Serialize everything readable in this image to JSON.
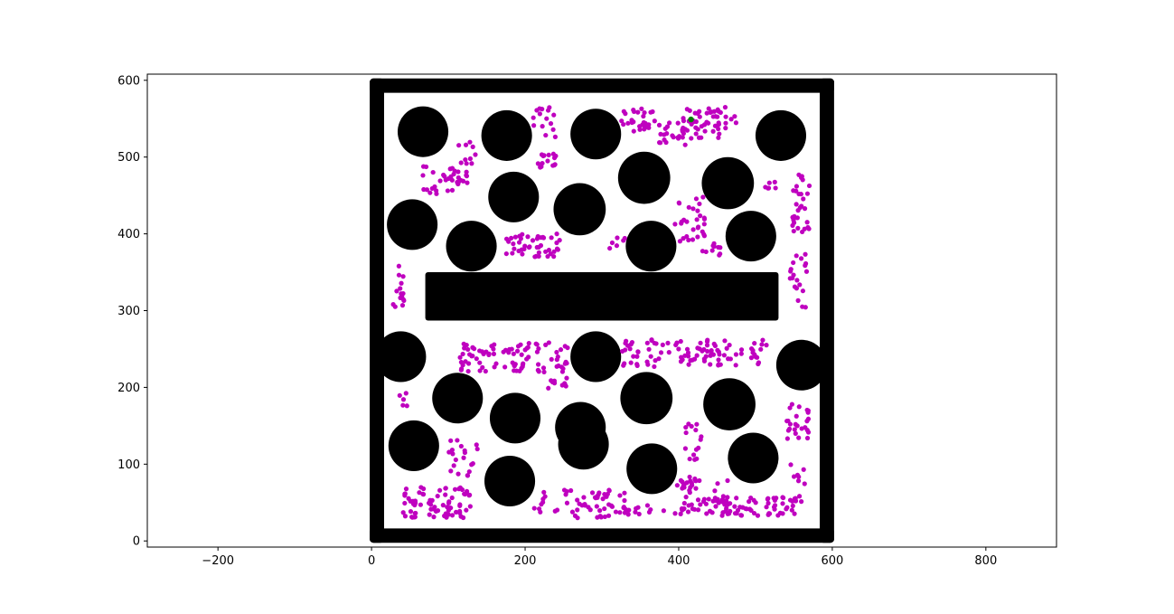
{
  "chart_data": {
    "type": "scatter",
    "title": "",
    "xlabel": "",
    "ylabel": "",
    "xlim": [
      -292,
      892
    ],
    "ylim": [
      -8,
      608
    ],
    "grid": false,
    "xticks": [
      -200,
      0,
      200,
      400,
      600,
      800
    ],
    "yticks": [
      0,
      100,
      200,
      300,
      400,
      500,
      600
    ],
    "xtick_labels": [
      "−200",
      "0",
      "200",
      "400",
      "600",
      "800"
    ],
    "ytick_labels": [
      "0",
      "100",
      "200",
      "300",
      "400",
      "500",
      "600"
    ],
    "colors": {
      "obstacle": "#000000",
      "samples": "#bf00bf",
      "goal": "#008000",
      "axes": "#000000"
    },
    "boundary": {
      "x0": 0,
      "y0": 0,
      "x1": 600,
      "y1": 600,
      "thickness": 14
    },
    "rect_obstacles": [
      {
        "x0": 70,
        "y0": 287,
        "x1": 530,
        "y1": 350
      }
    ],
    "circle_obstacles": [
      {
        "x": 67,
        "y": 533,
        "r": 33
      },
      {
        "x": 176,
        "y": 528,
        "r": 33
      },
      {
        "x": 292,
        "y": 530,
        "r": 33
      },
      {
        "x": 533,
        "y": 528,
        "r": 33
      },
      {
        "x": 355,
        "y": 473,
        "r": 34
      },
      {
        "x": 464,
        "y": 466,
        "r": 34
      },
      {
        "x": 185,
        "y": 448,
        "r": 33
      },
      {
        "x": 271,
        "y": 432,
        "r": 34
      },
      {
        "x": 53,
        "y": 412,
        "r": 33
      },
      {
        "x": 130,
        "y": 384,
        "r": 33
      },
      {
        "x": 364,
        "y": 384,
        "r": 33
      },
      {
        "x": 494,
        "y": 397,
        "r": 33
      },
      {
        "x": 38,
        "y": 240,
        "r": 33
      },
      {
        "x": 292,
        "y": 240,
        "r": 33
      },
      {
        "x": 560,
        "y": 229,
        "r": 33
      },
      {
        "x": 112,
        "y": 186,
        "r": 33
      },
      {
        "x": 358,
        "y": 186,
        "r": 34
      },
      {
        "x": 466,
        "y": 178,
        "r": 34
      },
      {
        "x": 187,
        "y": 160,
        "r": 33
      },
      {
        "x": 272,
        "y": 148,
        "r": 33
      },
      {
        "x": 276,
        "y": 126,
        "r": 33
      },
      {
        "x": 55,
        "y": 124,
        "r": 33
      },
      {
        "x": 497,
        "y": 108,
        "r": 33
      },
      {
        "x": 365,
        "y": 94,
        "r": 33
      },
      {
        "x": 180,
        "y": 78,
        "r": 33
      }
    ],
    "sample_clusters": [
      {
        "cx": 345,
        "cy": 548,
        "rx": 25,
        "ry": 15,
        "n": 30
      },
      {
        "cx": 440,
        "cy": 545,
        "rx": 35,
        "ry": 20,
        "n": 50
      },
      {
        "cx": 395,
        "cy": 530,
        "rx": 25,
        "ry": 15,
        "n": 25
      },
      {
        "cx": 225,
        "cy": 545,
        "rx": 15,
        "ry": 20,
        "n": 15
      },
      {
        "cx": 230,
        "cy": 495,
        "rx": 15,
        "ry": 10,
        "n": 15
      },
      {
        "cx": 95,
        "cy": 470,
        "rx": 30,
        "ry": 18,
        "n": 35
      },
      {
        "cx": 125,
        "cy": 505,
        "rx": 12,
        "ry": 15,
        "n": 10
      },
      {
        "cx": 560,
        "cy": 440,
        "rx": 12,
        "ry": 40,
        "n": 30
      },
      {
        "cx": 520,
        "cy": 460,
        "rx": 10,
        "ry": 10,
        "n": 6
      },
      {
        "cx": 415,
        "cy": 420,
        "rx": 20,
        "ry": 30,
        "n": 30
      },
      {
        "cx": 210,
        "cy": 385,
        "rx": 40,
        "ry": 15,
        "n": 45
      },
      {
        "cx": 320,
        "cy": 385,
        "rx": 10,
        "ry": 10,
        "n": 6
      },
      {
        "cx": 440,
        "cy": 380,
        "rx": 15,
        "ry": 8,
        "n": 10
      },
      {
        "cx": 555,
        "cy": 340,
        "rx": 12,
        "ry": 40,
        "n": 20
      },
      {
        "cx": 35,
        "cy": 330,
        "rx": 8,
        "ry": 30,
        "n": 15
      },
      {
        "cx": 190,
        "cy": 240,
        "rx": 75,
        "ry": 20,
        "n": 90
      },
      {
        "cx": 420,
        "cy": 245,
        "rx": 95,
        "ry": 18,
        "n": 100
      },
      {
        "cx": 240,
        "cy": 205,
        "rx": 15,
        "ry": 8,
        "n": 10
      },
      {
        "cx": 40,
        "cy": 185,
        "rx": 8,
        "ry": 10,
        "n": 5
      },
      {
        "cx": 555,
        "cy": 155,
        "rx": 15,
        "ry": 25,
        "n": 25
      },
      {
        "cx": 120,
        "cy": 110,
        "rx": 20,
        "ry": 25,
        "n": 20
      },
      {
        "cx": 85,
        "cy": 50,
        "rx": 45,
        "ry": 20,
        "n": 75
      },
      {
        "cx": 270,
        "cy": 50,
        "rx": 60,
        "ry": 20,
        "n": 60
      },
      {
        "cx": 430,
        "cy": 60,
        "rx": 35,
        "ry": 25,
        "n": 60
      },
      {
        "cx": 500,
        "cy": 45,
        "rx": 55,
        "ry": 12,
        "n": 60
      },
      {
        "cx": 418,
        "cy": 130,
        "rx": 12,
        "ry": 25,
        "n": 15
      },
      {
        "cx": 555,
        "cy": 75,
        "rx": 10,
        "ry": 25,
        "n": 12
      },
      {
        "cx": 360,
        "cy": 40,
        "rx": 30,
        "ry": 8,
        "n": 12
      }
    ],
    "goal_point": {
      "x": 416,
      "y": 549
    }
  }
}
